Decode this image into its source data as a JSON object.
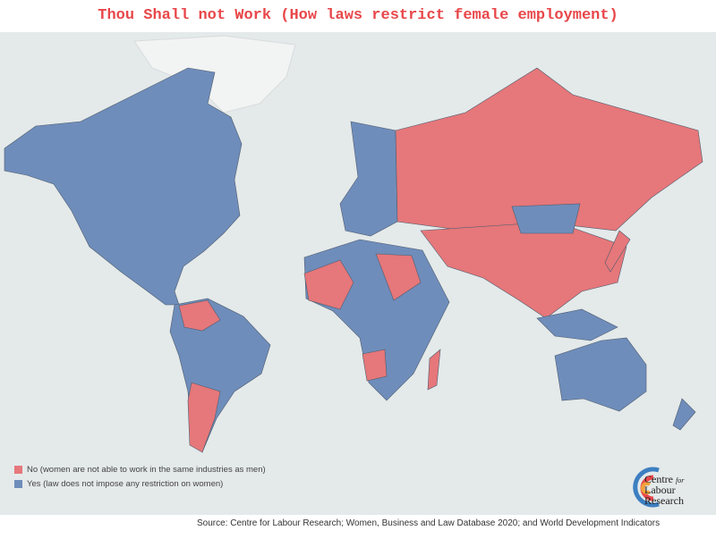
{
  "title": "Thou Shall not Work (How laws restrict female employment)",
  "legend": [
    {
      "label": "No (women are not able to work in the same industries as men)",
      "color": "#e6777a"
    },
    {
      "label": "Yes (law does not impose any restriction on women)",
      "color": "#6f8dbb"
    }
  ],
  "source": "Source: Centre for Labour Research; Women, Business and Law Database 2020; and World Development Indicators",
  "logo": {
    "line1": "Centre",
    "line1b": "for",
    "line2": "Labour",
    "line3": "Research"
  }
}
